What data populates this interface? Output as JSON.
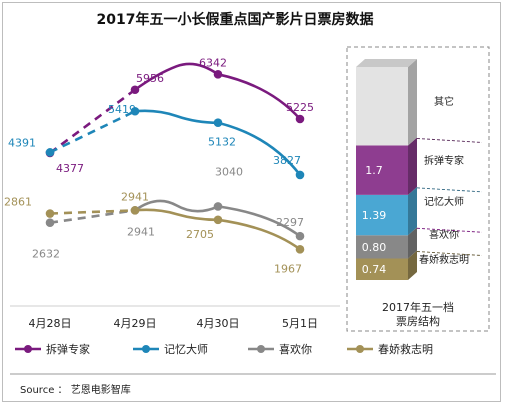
{
  "chart_data": [
    {
      "type": "line",
      "title": "2017年五一小长假重点国产影片日票房数据",
      "categories": [
        "4月28日",
        "4月29日",
        "4月30日",
        "5月1日"
      ],
      "series": [
        {
          "name": "拆弹专家",
          "color": "#7a1a7e",
          "values": [
            4377,
            5956,
            6342,
            5225
          ],
          "labels": [
            "4377",
            "5956",
            "6342",
            "5225"
          ]
        },
        {
          "name": "记忆大师",
          "color": "#1e86b8",
          "values": [
            4391,
            5419,
            5132,
            3827
          ],
          "labels": [
            "4391",
            "5419",
            "5132",
            "3827"
          ]
        },
        {
          "name": "喜欢你",
          "color": "#888888",
          "values": [
            2632,
            2941,
            3040,
            2297
          ],
          "labels": [
            "2632",
            "2941",
            "3040",
            "2297"
          ]
        },
        {
          "name": "春娇救志明",
          "color": "#a39157",
          "values": [
            2861,
            2941,
            2705,
            1967
          ],
          "labels": [
            "2861",
            "2941",
            "2705",
            "1967"
          ]
        }
      ]
    },
    {
      "type": "bar",
      "title": "2017年五一档\n票房结构",
      "stacked": true,
      "segments": [
        {
          "name": "春娇救志明",
          "value": 0.74,
          "label": "0.74",
          "color": "#a39157"
        },
        {
          "name": "喜欢你",
          "value": 0.8,
          "label": "0.80",
          "color": "#888888"
        },
        {
          "name": "记忆大师",
          "value": 1.39,
          "label": "1.39",
          "color": "#4aa7d3"
        },
        {
          "name": "拆弹专家",
          "value": 1.7,
          "label": "1.7",
          "color": "#8e3d90"
        },
        {
          "name": "其它",
          "value": 2.7,
          "label": "",
          "color": "#e3e3e3"
        }
      ]
    }
  ],
  "source": "Source ： 艺恩电影智库"
}
